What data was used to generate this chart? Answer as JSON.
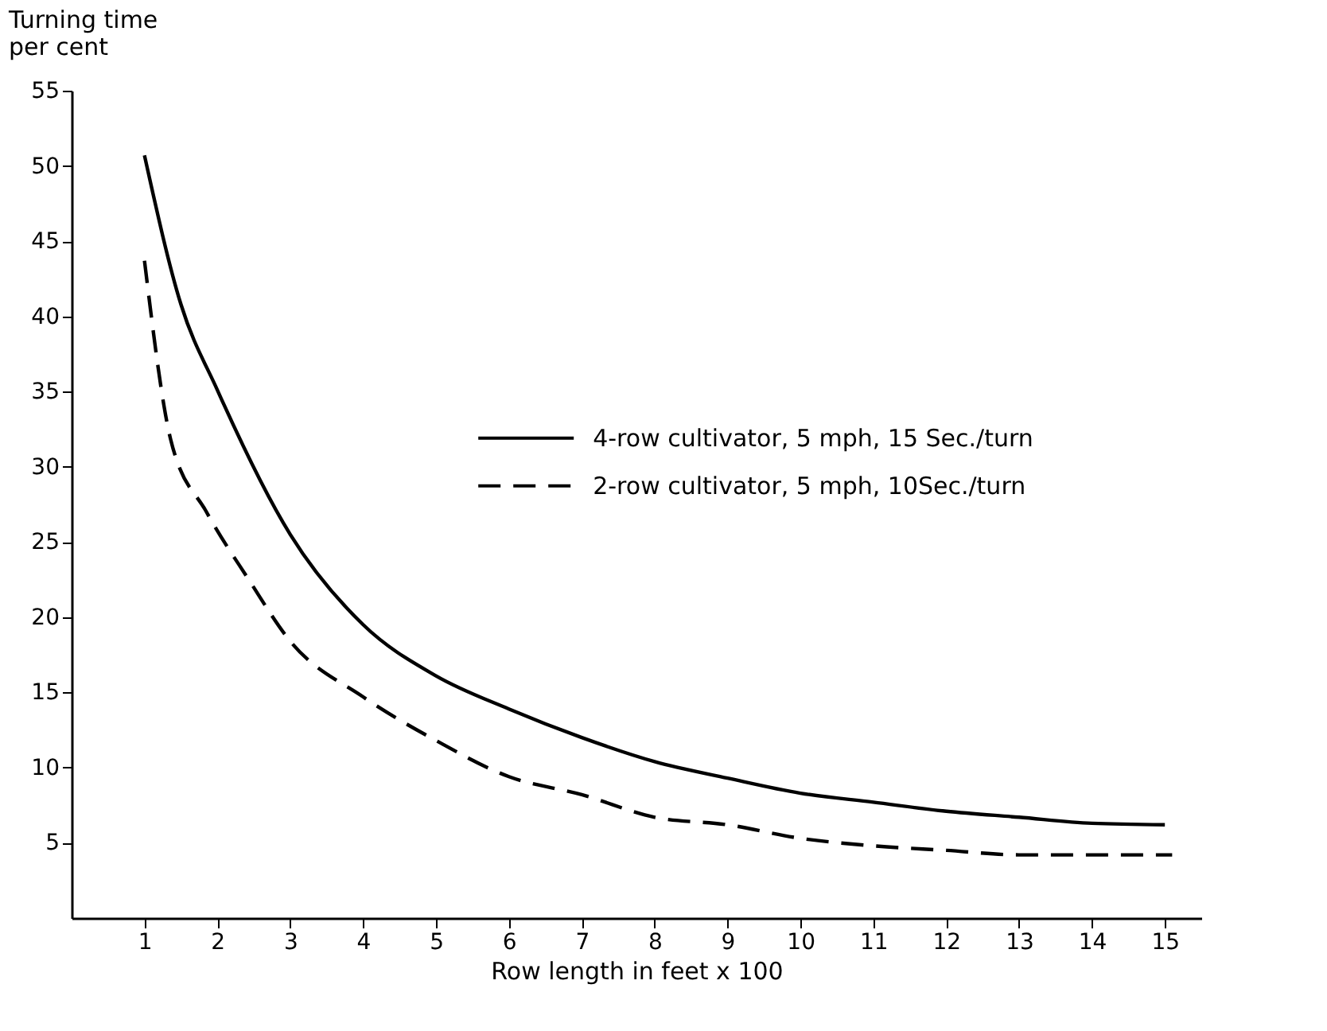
{
  "chart_data": {
    "type": "line",
    "xlabel": "Row length in feet x 100",
    "ylabel": "Turning time\nper cent",
    "xlim": [
      0,
      15.5
    ],
    "ylim": [
      0,
      55
    ],
    "xticks": [
      1,
      2,
      3,
      4,
      5,
      6,
      7,
      8,
      9,
      10,
      11,
      12,
      13,
      14,
      15
    ],
    "yticks": [
      5,
      10,
      15,
      20,
      25,
      30,
      35,
      40,
      45,
      50,
      55
    ],
    "grid": false,
    "legend": "right",
    "series": [
      {
        "name": "4-row  cultivator, 5 mph, 15 Sec./turn",
        "color": "#000000",
        "line_style": "solid",
        "x": [
          1,
          1.5,
          2,
          3,
          4,
          5,
          6,
          7,
          8,
          9,
          10,
          11,
          12,
          13,
          14,
          15
        ],
        "values": [
          50.7,
          40.8,
          35.1,
          25.5,
          19.5,
          16.1,
          13.9,
          12.0,
          10.4,
          9.3,
          8.3,
          7.7,
          7.1,
          6.7,
          6.3,
          6.2
        ]
      },
      {
        "name": "2-row  cultivator, 5 mph, 10Sec./turn",
        "color": "#000000",
        "line_style": "dashed",
        "x": [
          1,
          1.36,
          1.85,
          2.43,
          3,
          4,
          5,
          6,
          7,
          8,
          9,
          10,
          11,
          12,
          13,
          14,
          15.1
        ],
        "values": [
          43.7,
          31.8,
          27.0,
          22.5,
          18.4,
          14.7,
          11.8,
          9.4,
          8.2,
          6.7,
          6.2,
          5.3,
          4.8,
          4.5,
          4.2,
          4.2,
          4.2
        ]
      }
    ]
  }
}
